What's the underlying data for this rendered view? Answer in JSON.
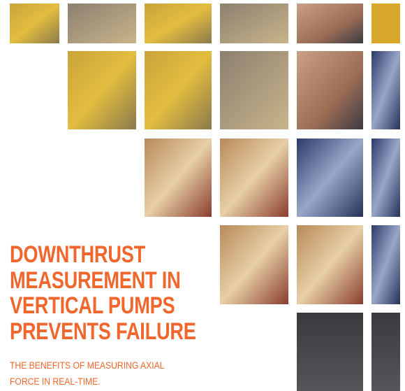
{
  "cover": {
    "title_lines": [
      "DOWNTHRUST",
      "MEASUREMENT IN",
      "VERTICAL PUMPS",
      "PREVENTS FAILURE"
    ],
    "subtitle_lines": [
      "THE BENEFITS OF MEASURING AXIAL",
      "FORCE IN REAL-TIME."
    ]
  }
}
